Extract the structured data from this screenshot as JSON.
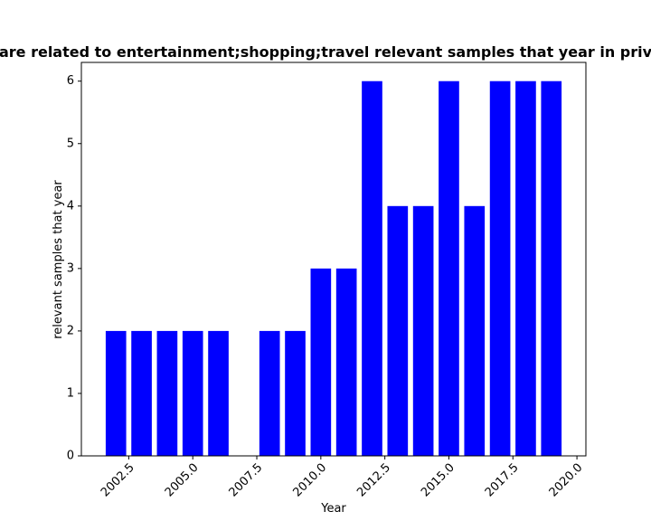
{
  "chart_data": {
    "type": "bar",
    "title": "are related to entertainment;shopping;travel relevant samples that year in priv",
    "xlabel": "Year",
    "ylabel": "relevant samples that year",
    "x": [
      2002,
      2003,
      2004,
      2005,
      2006,
      2008,
      2009,
      2010,
      2011,
      2012,
      2013,
      2014,
      2015,
      2016,
      2017,
      2018,
      2019
    ],
    "values": [
      2,
      2,
      2,
      2,
      2,
      2,
      2,
      3,
      3,
      6,
      4,
      4,
      6,
      4,
      6,
      6,
      6
    ],
    "bar_color": "#0000ff",
    "xlim": [
      2000.65,
      2020.35
    ],
    "ylim": [
      0,
      6.3
    ],
    "xticks": [
      2002.5,
      2005.0,
      2007.5,
      2010.0,
      2012.5,
      2015.0,
      2017.5,
      2020.0
    ],
    "xtick_labels": [
      "2002.5",
      "2005.0",
      "2007.5",
      "2010.0",
      "2012.5",
      "2015.0",
      "2017.5",
      "2020.0"
    ],
    "yticks": [
      0,
      1,
      2,
      3,
      4,
      5,
      6
    ],
    "ytick_labels": [
      "0",
      "1",
      "2",
      "3",
      "4",
      "5",
      "6"
    ],
    "grid": false,
    "legend": "none"
  }
}
